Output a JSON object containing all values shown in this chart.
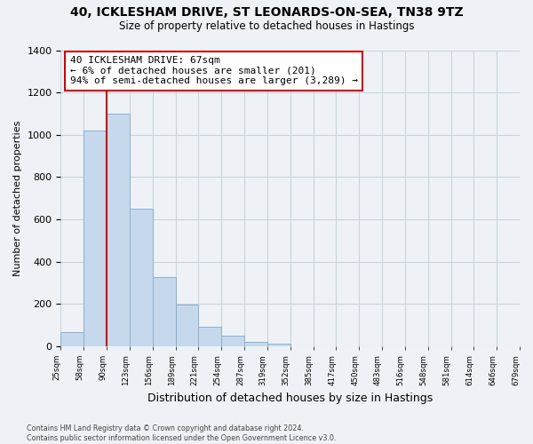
{
  "title_line1": "40, ICKLESHAM DRIVE, ST LEONARDS-ON-SEA, TN38 9TZ",
  "title_line2": "Size of property relative to detached houses in Hastings",
  "xlabel": "Distribution of detached houses by size in Hastings",
  "ylabel": "Number of detached properties",
  "bar_values": [
    65,
    1020,
    1100,
    650,
    325,
    195,
    90,
    48,
    22,
    10,
    0,
    0,
    0,
    0,
    0,
    0,
    0,
    0,
    0,
    0
  ],
  "categories": [
    "25sqm",
    "58sqm",
    "90sqm",
    "123sqm",
    "156sqm",
    "189sqm",
    "221sqm",
    "254sqm",
    "287sqm",
    "319sqm",
    "352sqm",
    "385sqm",
    "417sqm",
    "450sqm",
    "483sqm",
    "516sqm",
    "548sqm",
    "581sqm",
    "614sqm",
    "646sqm",
    "679sqm"
  ],
  "bar_color": "#c6d9ec",
  "bar_edge_color": "#8cb0cc",
  "vline_color": "#cc0000",
  "annotation_text": "40 ICKLESHAM DRIVE: 67sqm\n← 6% of detached houses are smaller (201)\n94% of semi-detached houses are larger (3,289) →",
  "annotation_box_color": "#ffffff",
  "annotation_box_edge": "#cc0000",
  "ylim": [
    0,
    1400
  ],
  "yticks": [
    0,
    200,
    400,
    600,
    800,
    1000,
    1200,
    1400
  ],
  "grid_color": "#c8d4de",
  "footnote_line1": "Contains HM Land Registry data © Crown copyright and database right 2024.",
  "footnote_line2": "Contains public sector information licensed under the Open Government Licence v3.0.",
  "background_color": "#eef2f6",
  "plot_bg_color": "#eef2f6"
}
